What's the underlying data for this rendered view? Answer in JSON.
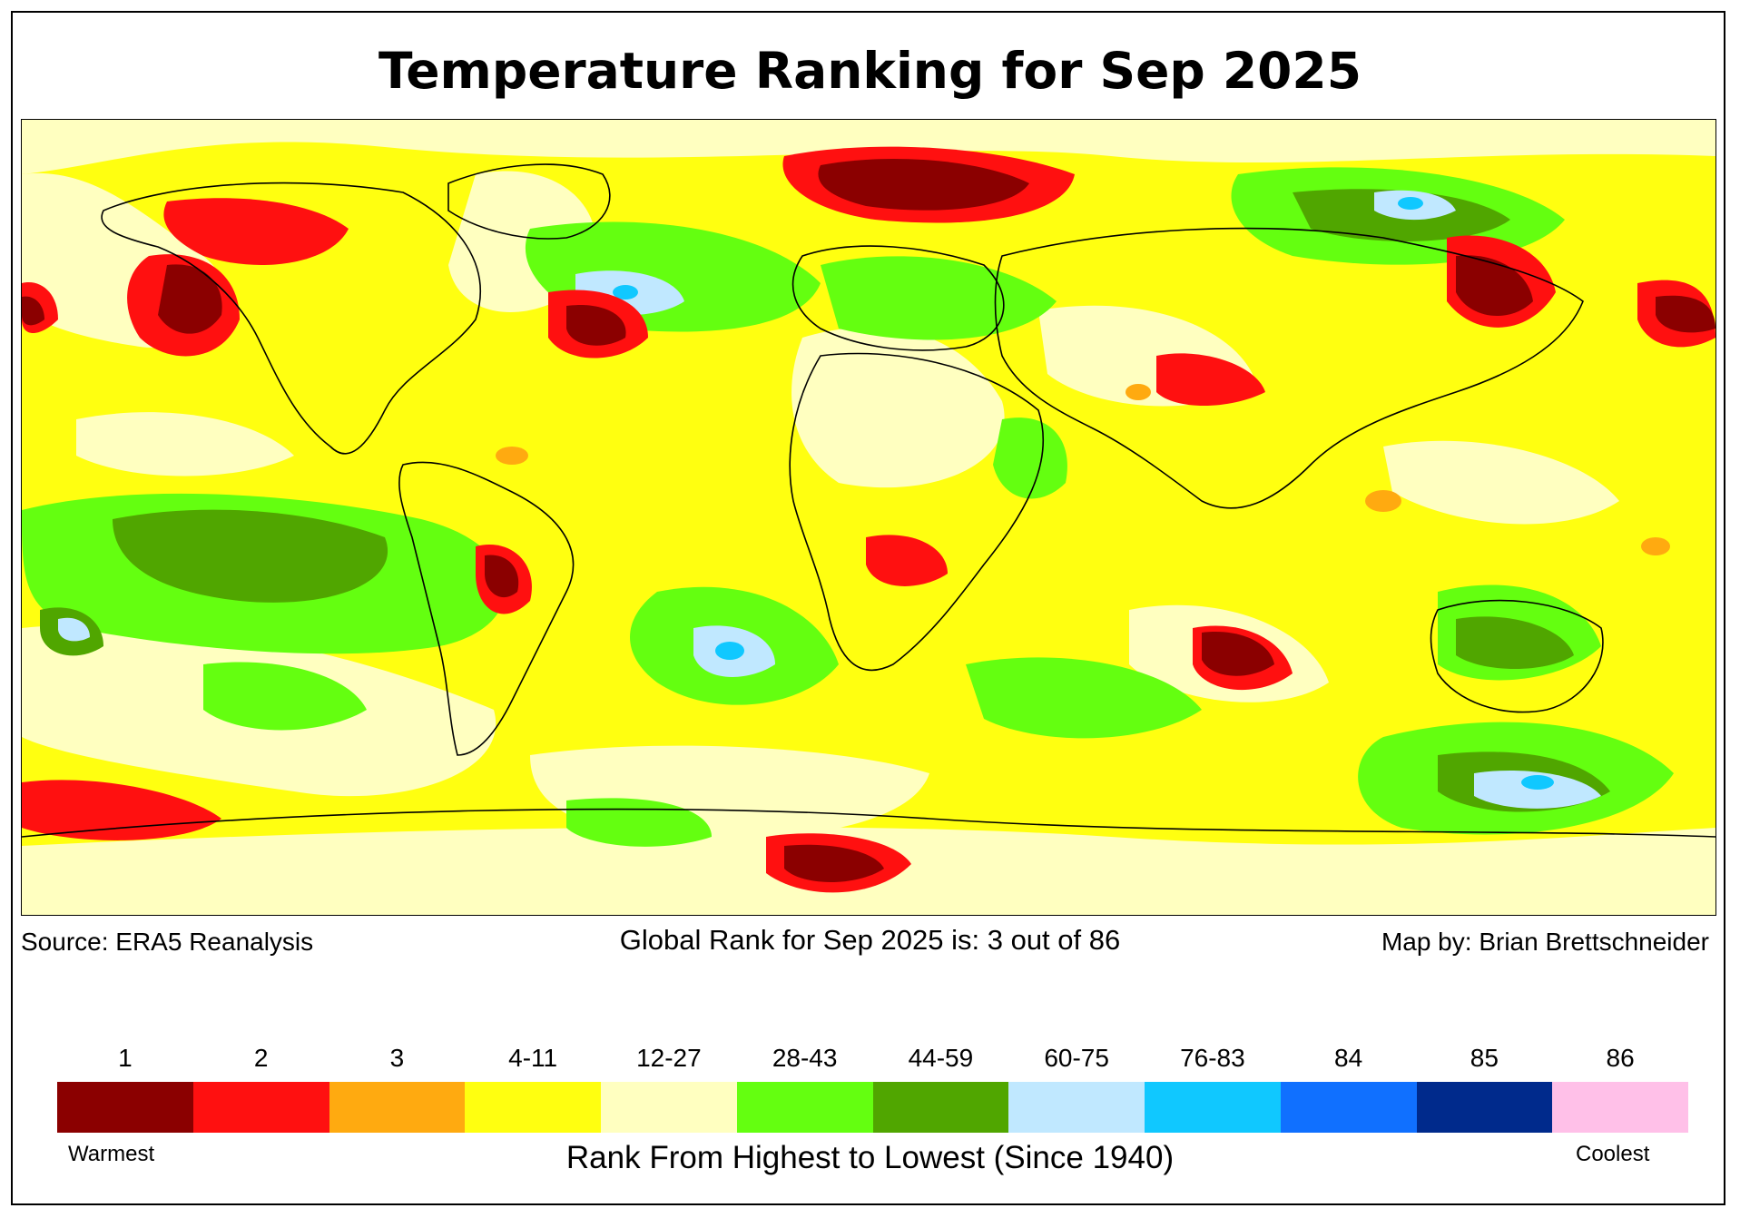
{
  "title": "Temperature Ranking for Sep 2025",
  "source_text": "Source: ERA5 Reanalysis",
  "global_rank_text": "Global Rank for Sep 2025 is: 3 out of 86",
  "map_by_text": "Map by: Brian Brettschneider",
  "legend": {
    "axis_title": "Rank From Highest to Lowest (Since 1940)",
    "warmest_label": "Warmest",
    "coolest_label": "Coolest",
    "classes": [
      {
        "label": "1",
        "color": "#8b0000"
      },
      {
        "label": "2",
        "color": "#ff1010"
      },
      {
        "label": "3",
        "color": "#ffaa10"
      },
      {
        "label": "4-11",
        "color": "#ffff10"
      },
      {
        "label": "12-27",
        "color": "#ffffc0"
      },
      {
        "label": "28-43",
        "color": "#64ff10"
      },
      {
        "label": "44-59",
        "color": "#50a600"
      },
      {
        "label": "60-75",
        "color": "#c0e8ff"
      },
      {
        "label": "76-83",
        "color": "#10c8ff"
      },
      {
        "label": "84",
        "color": "#1070ff"
      },
      {
        "label": "85",
        "color": "#002a8c"
      },
      {
        "label": "86",
        "color": "#ffc0e8"
      }
    ]
  }
}
